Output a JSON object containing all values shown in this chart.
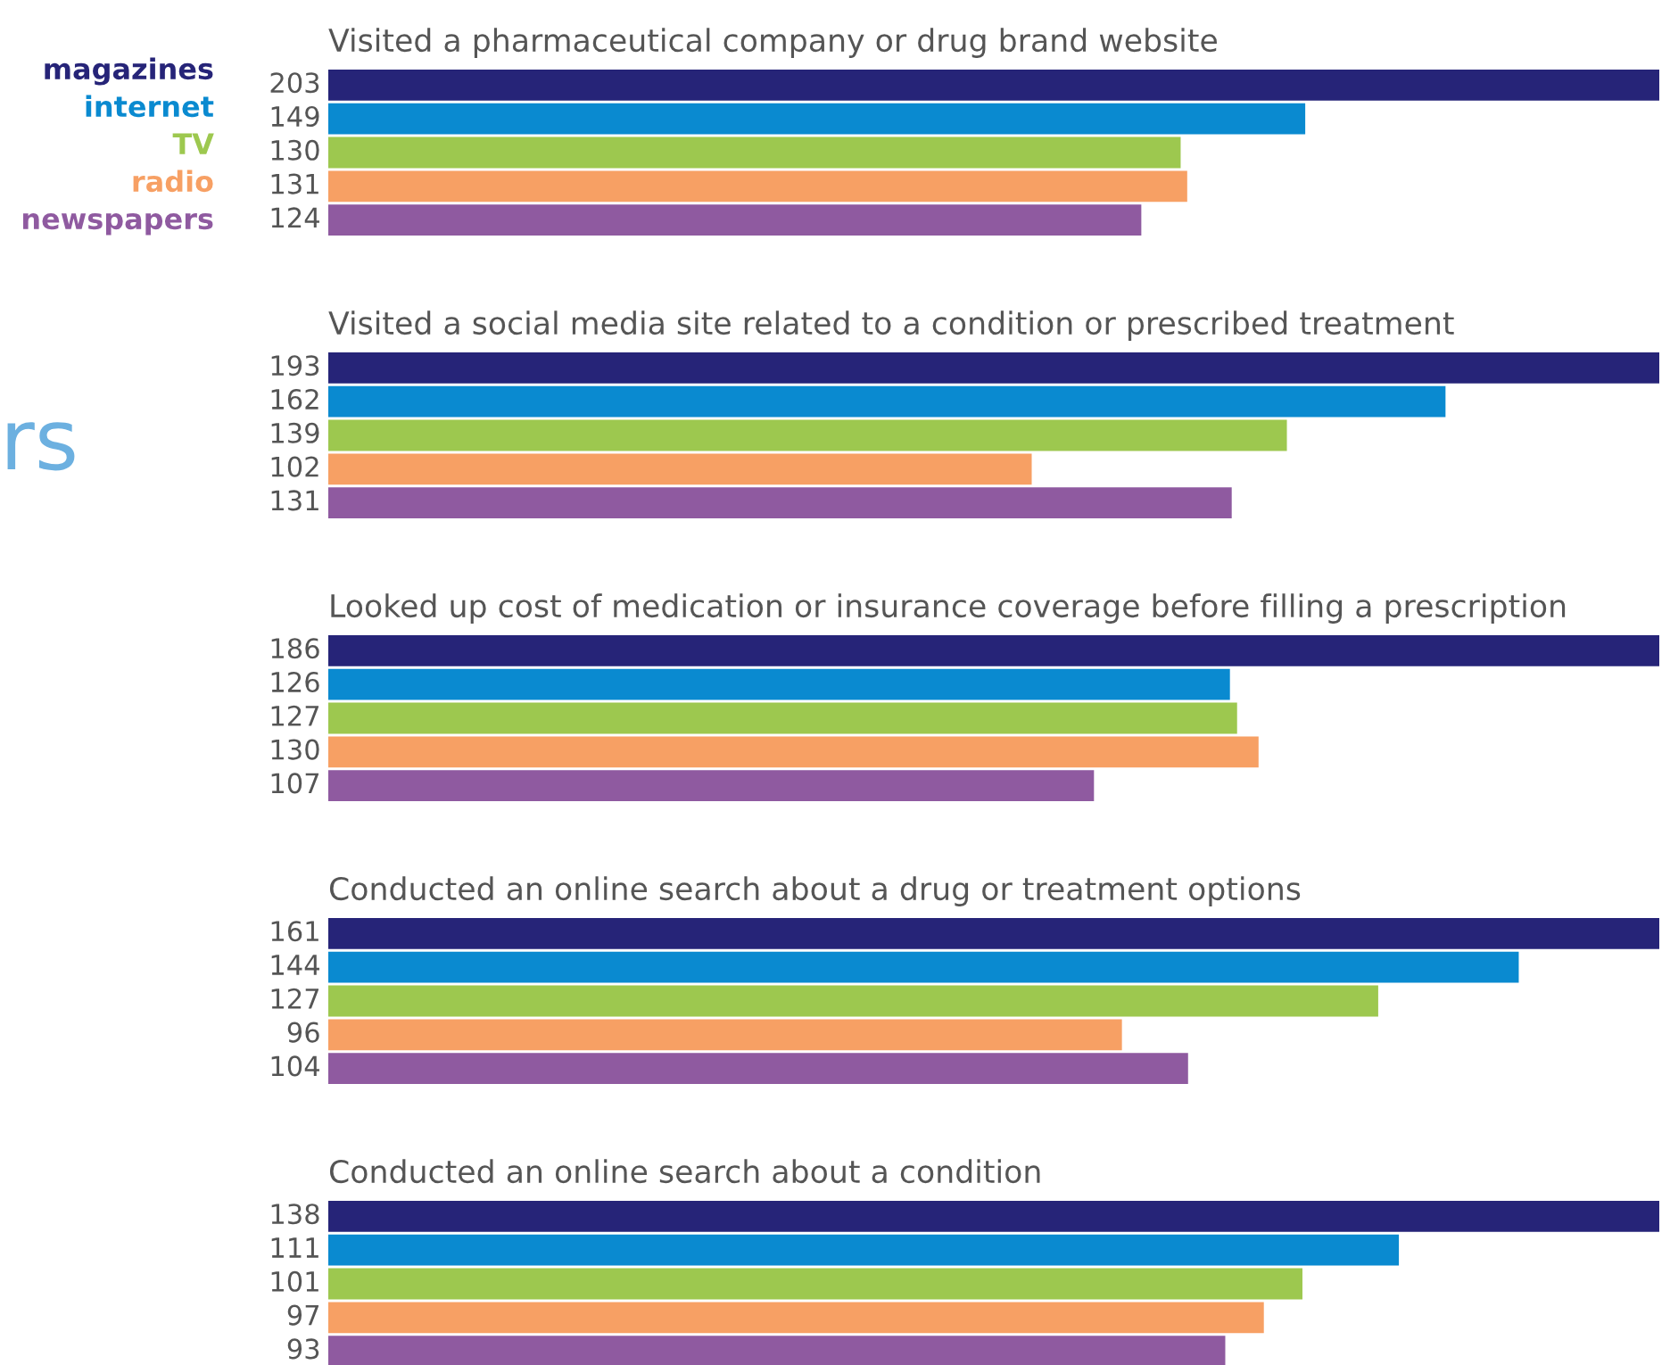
{
  "chart_data": [
    {
      "type": "bar",
      "orientation": "horizontal",
      "title": "Visited a pharmaceutical company or drug brand website",
      "categories": [
        null
      ],
      "data_labels": true,
      "tick_labels": false,
      "legend": "left",
      "annotations": [
        "rs"
      ],
      "series": [
        {
          "name": "magazines",
          "color": "#262478",
          "values": [
            203
          ]
        },
        {
          "name": "internet",
          "color": "#0a8ad0",
          "values": [
            149
          ]
        },
        {
          "name": "TV",
          "color": "#9dc84f",
          "values": [
            130
          ]
        },
        {
          "name": "radio",
          "color": "#f7a064",
          "values": [
            131
          ]
        },
        {
          "name": "newspapers",
          "color": "#8f5aa0",
          "values": [
            124
          ]
        }
      ]
    },
    {
      "type": "bar",
      "orientation": "horizontal",
      "title": "Visited a social media site related to a condition or prescribed treatment",
      "categories": [
        null
      ],
      "data_labels": true,
      "tick_labels": false,
      "series": [
        {
          "color": "#262478",
          "values": [
            193
          ]
        },
        {
          "color": "#0a8ad0",
          "values": [
            162
          ]
        },
        {
          "color": "#9dc84f",
          "values": [
            139
          ]
        },
        {
          "color": "#f7a064",
          "values": [
            102
          ]
        },
        {
          "color": "#8f5aa0",
          "values": [
            131
          ]
        }
      ]
    },
    {
      "type": "bar",
      "orientation": "horizontal",
      "title": "Looked up cost of medication or insurance coverage before filling a prescription",
      "categories": [
        null
      ],
      "data_labels": true,
      "tick_labels": false,
      "series": [
        {
          "color": "#262478",
          "values": [
            186
          ]
        },
        {
          "color": "#0a8ad0",
          "values": [
            126
          ]
        },
        {
          "color": "#9dc84f",
          "values": [
            127
          ]
        },
        {
          "color": "#f7a064",
          "values": [
            130
          ]
        },
        {
          "color": "#8f5aa0",
          "values": [
            107
          ]
        }
      ]
    },
    {
      "type": "bar",
      "orientation": "horizontal",
      "title": "Conducted an online search about a drug or treatment options",
      "categories": [
        null
      ],
      "data_labels": true,
      "tick_labels": false,
      "series": [
        {
          "color": "#262478",
          "values": [
            161
          ]
        },
        {
          "color": "#0a8ad0",
          "values": [
            144
          ]
        },
        {
          "color": "#9dc84f",
          "values": [
            127
          ]
        },
        {
          "color": "#f7a064",
          "values": [
            96
          ]
        },
        {
          "color": "#8f5aa0",
          "values": [
            104
          ]
        }
      ]
    },
    {
      "type": "bar",
      "orientation": "horizontal",
      "title": "Conducted an online search about a condition",
      "categories": [
        null
      ],
      "data_labels": true,
      "tick_labels": false,
      "series": [
        {
          "color": "#262478",
          "values": [
            138
          ]
        },
        {
          "color": "#0a8ad0",
          "values": [
            111
          ]
        },
        {
          "color": "#9dc84f",
          "values": [
            101
          ]
        },
        {
          "color": "#f7a064",
          "values": [
            97
          ]
        },
        {
          "color": "#8f5aa0",
          "values": [
            93
          ]
        }
      ]
    }
  ]
}
